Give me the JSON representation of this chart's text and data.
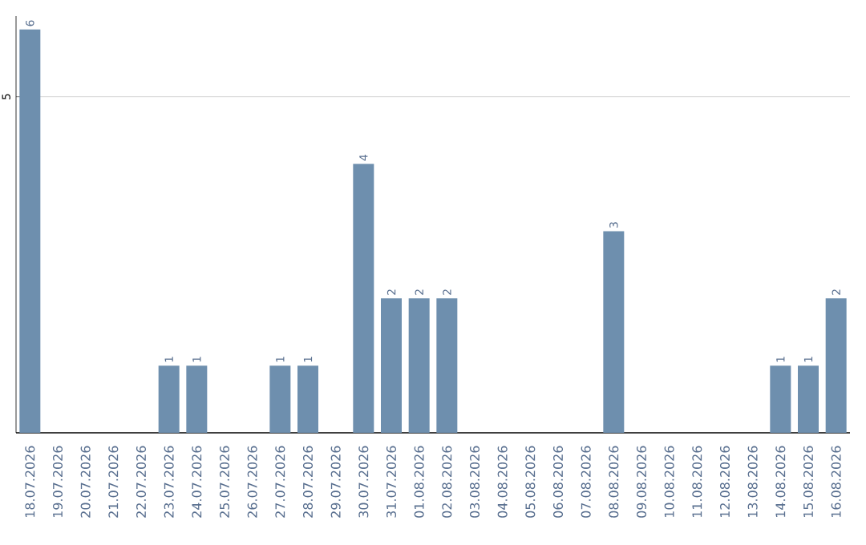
{
  "chart_data": {
    "type": "bar",
    "categories": [
      "18.07.2026",
      "19.07.2026",
      "20.07.2026",
      "21.07.2026",
      "22.07.2026",
      "23.07.2026",
      "24.07.2026",
      "25.07.2026",
      "26.07.2026",
      "27.07.2026",
      "28.07.2026",
      "29.07.2026",
      "30.07.2026",
      "31.07.2026",
      "01.08.2026",
      "02.08.2026",
      "03.08.2026",
      "04.08.2026",
      "05.08.2026",
      "06.08.2026",
      "07.08.2026",
      "08.08.2026",
      "09.08.2026",
      "10.08.2026",
      "11.08.2026",
      "12.08.2026",
      "13.08.2026",
      "14.08.2026",
      "15.08.2026",
      "16.08.2026"
    ],
    "values": [
      6,
      0,
      0,
      0,
      0,
      1,
      1,
      0,
      0,
      1,
      1,
      0,
      4,
      2,
      2,
      2,
      0,
      0,
      0,
      0,
      0,
      3,
      0,
      0,
      0,
      0,
      0,
      1,
      1,
      2
    ],
    "value_labels": [
      "6",
      null,
      null,
      null,
      null,
      "1",
      "1",
      null,
      null,
      "1",
      "1",
      null,
      "4",
      "2",
      "2",
      "2",
      null,
      null,
      null,
      null,
      null,
      "3",
      null,
      null,
      null,
      null,
      null,
      "1",
      "1",
      "2"
    ],
    "color": "#6e8fae",
    "ylim": [
      0,
      6.2
    ],
    "yticks": [
      5
    ],
    "grid": "y"
  }
}
